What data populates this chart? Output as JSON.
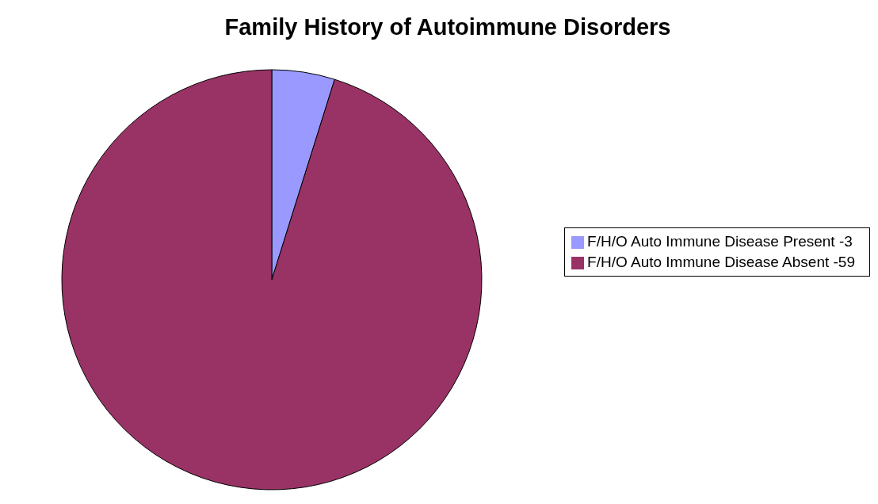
{
  "chart_data": {
    "type": "pie",
    "title": "Family History of Autoimmune Disorders",
    "categories": [
      "F/H/O Auto Immune Disease Present -3",
      "F/H/O Auto Immune Disease Absent -59"
    ],
    "values": [
      4.84,
      95.16
    ],
    "colors": [
      "#9999ff",
      "#993366"
    ],
    "legend": "right"
  }
}
